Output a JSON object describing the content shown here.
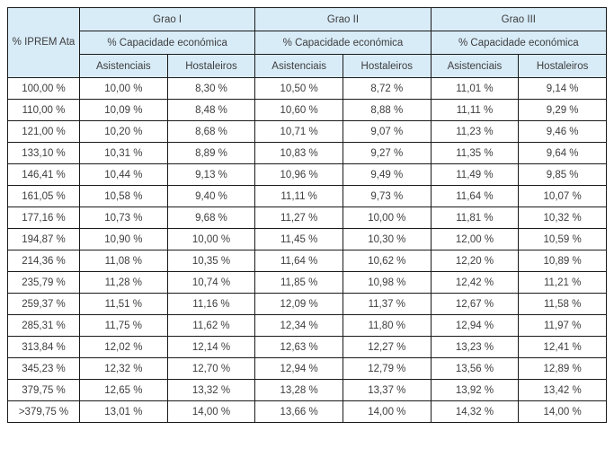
{
  "colors": {
    "header_bg": "#d8ecf8",
    "border": "#1a1a1a",
    "text": "#3d3d3d",
    "page_bg": "#ffffff"
  },
  "table": {
    "iprem_header": "% IPREM Ata",
    "groups": [
      {
        "label": "Grao I",
        "sub": "% Capacidade económica"
      },
      {
        "label": "Grao II",
        "sub": "% Capacidade económica"
      },
      {
        "label": "Grao III",
        "sub": "% Capacidade económica"
      }
    ],
    "col_headers": [
      "Asistenciais",
      "Hostaleiros"
    ],
    "rows": [
      [
        "100,00 %",
        "10,00 %",
        "8,30 %",
        "10,50 %",
        "8,72 %",
        "11,01 %",
        "9,14 %"
      ],
      [
        "110,00 %",
        "10,09 %",
        "8,48 %",
        "10,60 %",
        "8,88 %",
        "11,11 %",
        "9,29 %"
      ],
      [
        "121,00 %",
        "10,20 %",
        "8,68 %",
        "10,71 %",
        "9,07 %",
        "11,23 %",
        "9,46 %"
      ],
      [
        "133,10 %",
        "10,31 %",
        "8,89 %",
        "10,83 %",
        "9,27 %",
        "11,35 %",
        "9,64 %"
      ],
      [
        "146,41 %",
        "10,44 %",
        "9,13 %",
        "10,96 %",
        "9,49 %",
        "11,49 %",
        "9,85 %"
      ],
      [
        "161,05 %",
        "10,58 %",
        "9,40 %",
        "11,11 %",
        "9,73 %",
        "11,64 %",
        "10,07 %"
      ],
      [
        "177,16 %",
        "10,73 %",
        "9,68 %",
        "11,27 %",
        "10,00 %",
        "11,81 %",
        "10,32 %"
      ],
      [
        "194,87 %",
        "10,90 %",
        "10,00 %",
        "11,45 %",
        "10,30 %",
        "12,00 %",
        "10,59 %"
      ],
      [
        "214,36 %",
        "11,08 %",
        "10,35 %",
        "11,64 %",
        "10,62 %",
        "12,20 %",
        "10,89 %"
      ],
      [
        "235,79 %",
        "11,28 %",
        "10,74 %",
        "11,85 %",
        "10,98 %",
        "12,42 %",
        "11,21 %"
      ],
      [
        "259,37 %",
        "11,51 %",
        "11,16 %",
        "12,09 %",
        "11,37 %",
        "12,67 %",
        "11,58 %"
      ],
      [
        "285,31 %",
        "11,75 %",
        "11,62 %",
        "12,34 %",
        "11,80 %",
        "12,94 %",
        "11,97 %"
      ],
      [
        "313,84 %",
        "12,02 %",
        "12,14 %",
        "12,63 %",
        "12,27 %",
        "13,23 %",
        "12,41 %"
      ],
      [
        "345,23 %",
        "12,32 %",
        "12,70 %",
        "12,94 %",
        "12,79 %",
        "13,56 %",
        "12,89 %"
      ],
      [
        "379,75 %",
        "12,65 %",
        "13,32 %",
        "13,28 %",
        "13,37 %",
        "13,92 %",
        "13,42 %"
      ],
      [
        ">379,75 %",
        "13,01 %",
        "14,00 %",
        "13,66 %",
        "14,00 %",
        "14,32 %",
        "14,00 %"
      ]
    ]
  }
}
